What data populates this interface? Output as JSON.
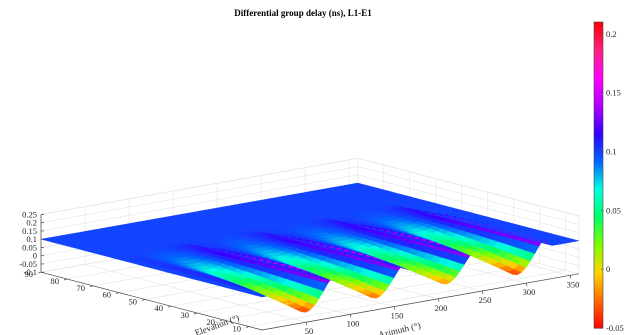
{
  "chart_data": {
    "type": "surface",
    "title": "Differential group delay (ns), L1-E1",
    "xlabel": "Azimuth (°)",
    "ylabel": "Elevation (°)",
    "zlabel": "",
    "xlim": [
      0,
      360
    ],
    "ylim": [
      5,
      90
    ],
    "zlim": [
      -0.1,
      0.25
    ],
    "clim": [
      -0.05,
      0.21
    ],
    "x_ticks": [
      "50",
      "100",
      "150",
      "200",
      "250",
      "300",
      "350"
    ],
    "y_ticks": [
      "10",
      "20",
      "30",
      "40",
      "50",
      "60",
      "70",
      "80",
      "90"
    ],
    "z_ticks": [
      "-0.1",
      "-0.05",
      "0",
      "0.05",
      "0.1",
      "0.15",
      "0.2",
      "0.25"
    ],
    "colorbar_ticks": [
      "-0.05",
      "0",
      "0.05",
      "0.1",
      "0.15",
      "0.2"
    ],
    "colormap": [
      "#ff0000",
      "#ff6a00",
      "#ffd400",
      "#7fff00",
      "#00ff66",
      "#00ffe0",
      "#0066ff",
      "#3000ff",
      "#b000ff",
      "#ff00ff",
      "#ff2080",
      "#ff0000"
    ],
    "plateau_value": 0.1,
    "features": [
      {
        "azimuth": 50,
        "min_value": -0.04,
        "peak_value": 0.19
      },
      {
        "azimuth": 130,
        "min_value": -0.03,
        "peak_value": 0.19
      },
      {
        "azimuth": 210,
        "min_value": -0.02,
        "peak_value": 0.19
      },
      {
        "azimuth": 290,
        "min_value": -0.04,
        "peak_value": 0.19
      }
    ],
    "grid": true
  }
}
